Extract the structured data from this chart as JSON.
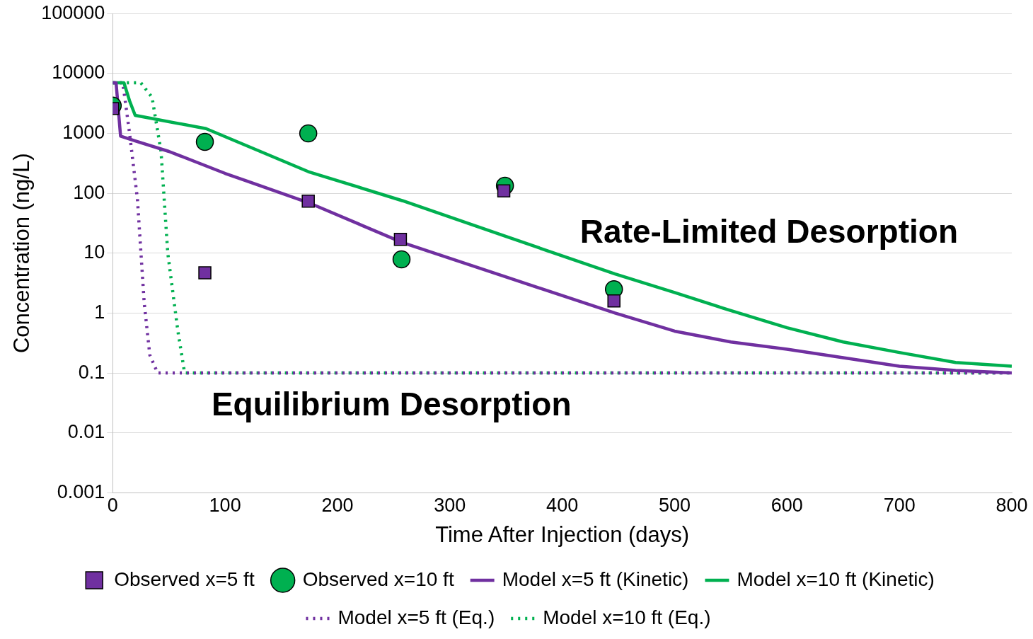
{
  "chart_data": {
    "type": "scatter",
    "xlabel": "Time After Injection (days)",
    "ylabel": "Concentration (ng/L)",
    "xlim": [
      0,
      800
    ],
    "xticks": [
      0,
      100,
      200,
      300,
      400,
      500,
      600,
      700,
      800
    ],
    "ylim": [
      0.001,
      100000
    ],
    "yticks": [
      0.001,
      0.01,
      0.1,
      1,
      10,
      100,
      1000,
      10000,
      100000
    ],
    "log": "y",
    "grid": "y",
    "legend": "bottom",
    "series": [
      {
        "name": "Observed x=5 ft",
        "type": "scatter",
        "marker": "square",
        "color": "#7030a0",
        "x": [
          0,
          82,
          174,
          256,
          348,
          446
        ],
        "values": [
          2600,
          4.7,
          74,
          17,
          110,
          1.6
        ]
      },
      {
        "name": "Observed x=10 ft",
        "type": "scatter",
        "marker": "circle",
        "color": "#00b050",
        "x": [
          0,
          82,
          174,
          257,
          349,
          446
        ],
        "values": [
          2900,
          720,
          1000,
          7.9,
          134,
          2.5
        ]
      },
      {
        "name": "Model x=5 ft (Kinetic)",
        "type": "line",
        "marker": "none",
        "line_style": "solid",
        "color": "#7030a0",
        "x": [
          0,
          3,
          7,
          20,
          50,
          100,
          174,
          258,
          350,
          447,
          500,
          550,
          600,
          650,
          700,
          750,
          800
        ],
        "values": [
          7000,
          7000,
          900,
          750,
          500,
          215,
          70,
          15,
          4,
          1,
          0.5,
          0.33,
          0.25,
          0.18,
          0.13,
          0.11,
          0.1
        ]
      },
      {
        "name": "Model x=10 ft (Kinetic)",
        "type": "line",
        "marker": "none",
        "line_style": "solid",
        "color": "#00b050",
        "x": [
          0,
          10,
          15,
          20,
          83,
          174,
          258,
          350,
          447,
          500,
          550,
          600,
          650,
          700,
          750,
          800
        ],
        "values": [
          7000,
          7000,
          3500,
          2000,
          1200,
          230,
          75,
          19,
          4.5,
          2.2,
          1.1,
          0.57,
          0.33,
          0.22,
          0.15,
          0.13
        ]
      },
      {
        "name": "Model x=5 ft (Eq.)",
        "type": "line",
        "marker": "none",
        "line_style": "dotted",
        "color": "#7030a0",
        "x": [
          0,
          9,
          15,
          22,
          28,
          33,
          40,
          800
        ],
        "values": [
          7000,
          7000,
          1000,
          80,
          1.5,
          0.2,
          0.1,
          0.1
        ]
      },
      {
        "name": "Model x=10 ft (Eq.)",
        "type": "line",
        "marker": "none",
        "line_style": "dotted",
        "color": "#00b050",
        "x": [
          0,
          25,
          35,
          43,
          49,
          58,
          64,
          800
        ],
        "values": [
          7000,
          7000,
          4000,
          500,
          10,
          0.5,
          0.1,
          0.1
        ]
      }
    ],
    "annotations": [
      "Rate-Limited Desorption",
      "Equilibrium Desorption"
    ]
  }
}
